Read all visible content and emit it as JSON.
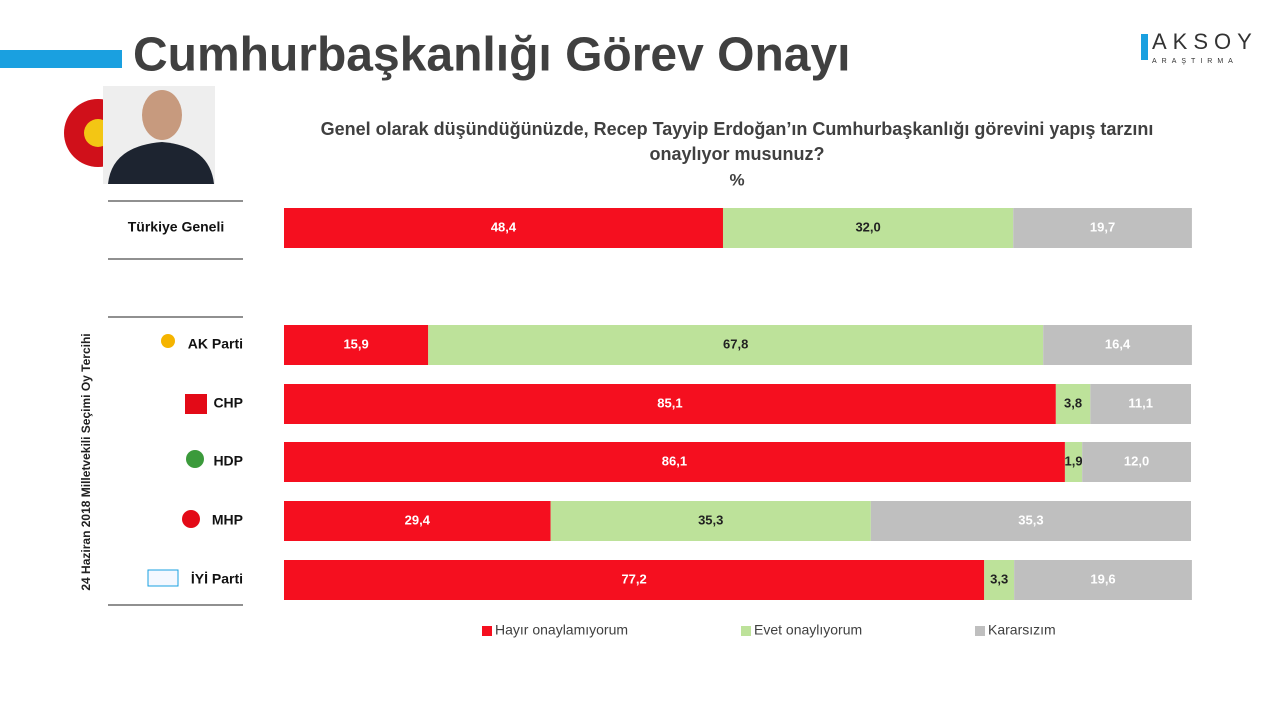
{
  "chart_data": {
    "type": "bar",
    "orientation": "horizontal",
    "stacked": true,
    "title": "Cumhurbaşkanlığı Görev Onayı",
    "subtitle": [
      "Genel olarak düşündüğünüzde, Recep Tayyip Erdoğan’ın Cumhurbaşkanlığı görevini yapış tarzını",
      "onaylıyor musunuz?"
    ],
    "unit": "%",
    "group_label": "24 Haziran 2018 Milletvekili Seçimi Oy Tercihi",
    "logo": {
      "name": "AKSOY",
      "sub": "ARAŞTIRMA"
    },
    "categories": [
      "Türkiye Geneli",
      "AK Parti",
      "CHP",
      "HDP",
      "MHP",
      "İYİ Parti"
    ],
    "xlim": [
      0,
      100
    ],
    "series": [
      {
        "name": "Hayır onaylamıyorum",
        "color": "#f50f1f",
        "label_color": "#ffffff",
        "values": [
          48.4,
          15.9,
          85.1,
          86.1,
          29.4,
          77.2
        ],
        "value_labels": [
          "48,4",
          "15,9",
          "85,1",
          "86,1",
          "29,4",
          "77,2"
        ]
      },
      {
        "name": "Evet onaylıyorum",
        "color": "#bde29a",
        "label_color": "#222222",
        "values": [
          32.0,
          67.8,
          3.8,
          1.9,
          35.3,
          3.3
        ],
        "value_labels": [
          "32,0",
          "67,8",
          "3,8",
          "1,9",
          "35,3",
          "3,3"
        ]
      },
      {
        "name": "Kararsızım",
        "color": "#bfbfbf",
        "label_color": "#ffffff",
        "values": [
          19.7,
          16.4,
          11.1,
          12.0,
          35.3,
          19.6
        ],
        "value_labels": [
          "19,7",
          "16,4",
          "11,1",
          "12,0",
          "35,3",
          "19,6"
        ]
      }
    ]
  }
}
